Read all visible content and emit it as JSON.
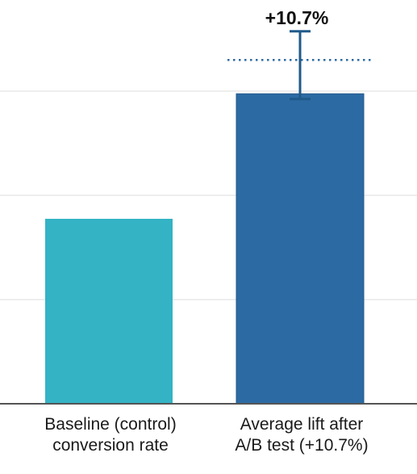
{
  "chart_data": {
    "type": "bar",
    "title": "",
    "xlabel": "",
    "ylabel": "",
    "ylim": [
      0,
      1.55
    ],
    "grid": true,
    "gridlines": [
      0.4,
      0.8,
      1.2
    ],
    "categories": [
      [
        "Baseline (control)",
        "conversion rate"
      ],
      [
        "Average lift after",
        "A/B test (+10.7%)"
      ]
    ],
    "values": [
      0.71,
      1.19
    ],
    "bar_colors": [
      "#33b3c4",
      "#2c6aa3"
    ],
    "error_bar": {
      "category_index": 1,
      "low": 1.17,
      "high": 1.43,
      "color": "#1f5a8a"
    },
    "reference_line": {
      "category_index": 1,
      "value": 1.32,
      "style": "dotted",
      "color": "#2c6aa3"
    },
    "annotations": [
      {
        "category_index": 1,
        "text": "+10.7%"
      }
    ]
  }
}
